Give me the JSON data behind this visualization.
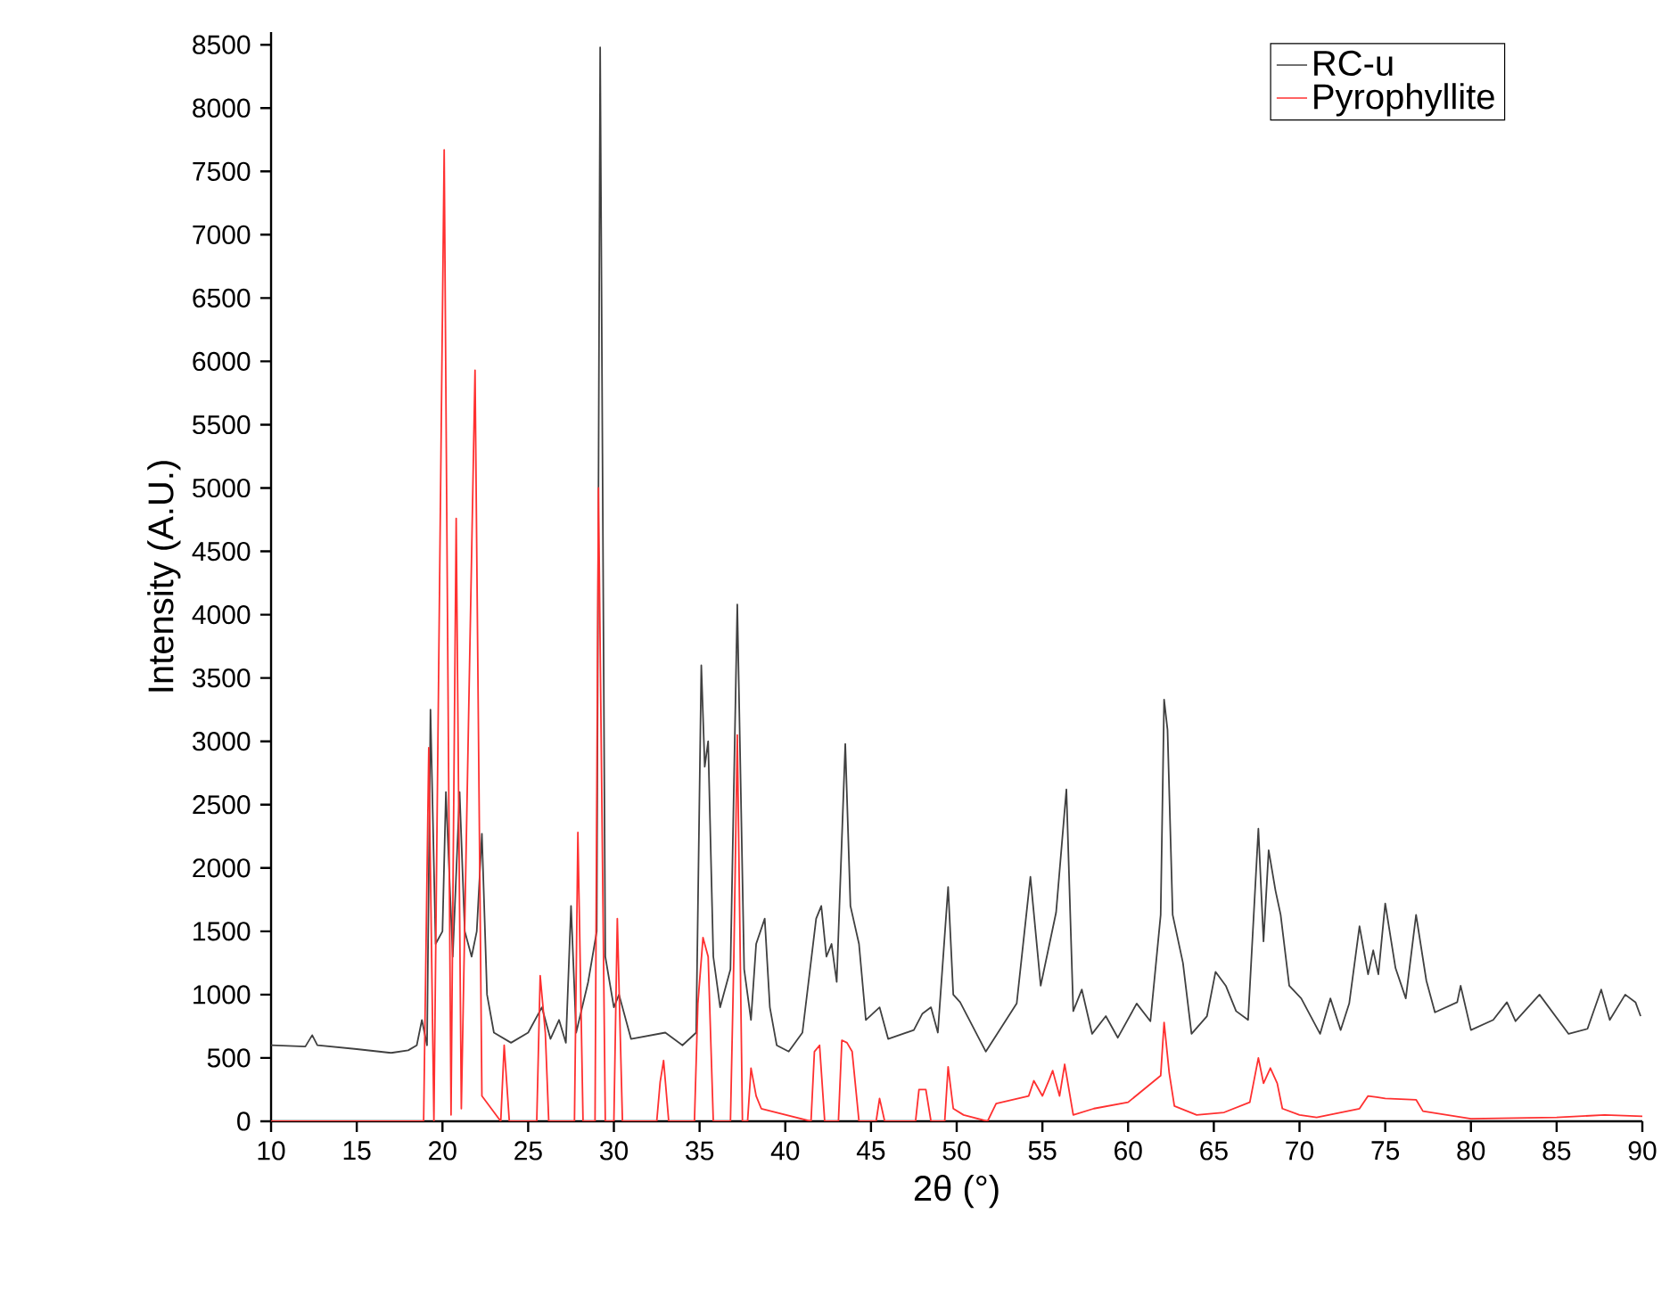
{
  "chart_data": {
    "type": "line",
    "xlabel": "2θ (°)",
    "ylabel": "Intensity (A.U.)",
    "xlim": [
      10,
      90
    ],
    "ylim": [
      0,
      8600
    ],
    "xticks": [
      10,
      15,
      20,
      25,
      30,
      35,
      40,
      45,
      50,
      55,
      60,
      65,
      70,
      75,
      80,
      85,
      90
    ],
    "yticks": [
      0,
      500,
      1000,
      1500,
      2000,
      2500,
      3000,
      3500,
      4000,
      4500,
      5000,
      5500,
      6000,
      6500,
      7000,
      7500,
      8000,
      8500
    ],
    "grid": false,
    "legend": "top right",
    "marker": "none",
    "line_style": "solid",
    "series": [
      {
        "name": "RC-u",
        "color": "#404040",
        "x": [
          10,
          12,
          12.4,
          12.7,
          15,
          17,
          18,
          18.5,
          18.8,
          19.1,
          19.3,
          19.6,
          20.0,
          20.2,
          20.6,
          21.0,
          21.3,
          21.7,
          22.0,
          22.3,
          22.6,
          23,
          24,
          25,
          25.8,
          26.3,
          26.8,
          27.2,
          27.5,
          27.8,
          28.5,
          29.0,
          29.2,
          29.5,
          30,
          30.3,
          31,
          33,
          34,
          34.8,
          35.1,
          35.3,
          35.5,
          35.8,
          36.2,
          36.8,
          37.2,
          37.6,
          38,
          38.3,
          38.8,
          39.1,
          39.5,
          40.2,
          41,
          41.8,
          42.1,
          42.4,
          42.7,
          43.0,
          43.5,
          43.8,
          44.3,
          44.7,
          45.5,
          46,
          47.5,
          48,
          48.5,
          48.9,
          49.5,
          49.8,
          50.2,
          51.7,
          53.5,
          54.3,
          54.9,
          55.8,
          56.4,
          56.8,
          57.3,
          57.9,
          58.7,
          59.4,
          60.5,
          61.3,
          61.9,
          62.1,
          62.3,
          62.6,
          63.2,
          63.7,
          64.6,
          65.1,
          65.7,
          66.3,
          67.0,
          67.6,
          67.9,
          68.2,
          68.6,
          68.9,
          69.4,
          70.1,
          71.2,
          71.8,
          72.4,
          72.9,
          73.5,
          74.0,
          74.3,
          74.6,
          75.0,
          75.6,
          76.2,
          76.8,
          77.4,
          77.9,
          79.2,
          79.4,
          80.0,
          81.3,
          82.1,
          82.6,
          84.0,
          85.7,
          86.8,
          87.6,
          88.1,
          89.0,
          89.6,
          89.9
        ],
        "values": [
          600,
          590,
          680,
          600,
          570,
          540,
          560,
          600,
          800,
          600,
          3250,
          1400,
          1500,
          2600,
          1300,
          2600,
          1500,
          1300,
          1500,
          2270,
          1000,
          700,
          620,
          700,
          900,
          650,
          800,
          620,
          1700,
          700,
          1100,
          1500,
          8480,
          1300,
          900,
          1000,
          650,
          700,
          600,
          700,
          3600,
          2800,
          3000,
          1300,
          900,
          1200,
          4080,
          1200,
          800,
          1400,
          1600,
          900,
          600,
          550,
          700,
          1600,
          1700,
          1300,
          1400,
          1100,
          2980,
          1700,
          1400,
          800,
          900,
          650,
          720,
          850,
          900,
          700,
          1850,
          1000,
          940,
          550,
          930,
          1930,
          1070,
          1650,
          2620,
          870,
          1040,
          690,
          830,
          660,
          930,
          790,
          1630,
          3330,
          3090,
          1630,
          1250,
          690,
          830,
          1180,
          1070,
          870,
          800,
          2310,
          1420,
          2140,
          1820,
          1630,
          1070,
          970,
          690,
          970,
          720,
          930,
          1540,
          1160,
          1350,
          1160,
          1720,
          1210,
          970,
          1630,
          1110,
          860,
          940,
          1070,
          720,
          800,
          940,
          790,
          1000,
          690,
          730,
          1040,
          800,
          1000,
          940,
          830
        ]
      },
      {
        "name": "Pyrophyllite",
        "color": "#ff3030",
        "x": [
          10,
          18.9,
          19.2,
          19.5,
          20.1,
          20.5,
          20.8,
          21.1,
          21.9,
          22.3,
          23.4,
          23.6,
          23.9,
          25.5,
          25.7,
          26.0,
          26.2,
          27.7,
          27.9,
          28.2,
          28.9,
          29.1,
          29.5,
          30.0,
          30.2,
          30.5,
          32.5,
          32.7,
          32.9,
          33.2,
          34.7,
          34.9,
          35.2,
          35.5,
          35.8,
          36.8,
          37.0,
          37.2,
          37.5,
          37.8,
          38.0,
          38.3,
          38.6,
          41.5,
          41.7,
          42.0,
          42.3,
          43.1,
          43.3,
          43.6,
          43.9,
          44.3,
          45.3,
          45.5,
          45.8,
          47.6,
          47.8,
          48.2,
          48.5,
          49.3,
          49.5,
          49.8,
          50.4,
          51.8,
          52.3,
          54.2,
          54.5,
          55.0,
          55.4,
          55.6,
          56.0,
          56.3,
          56.8,
          58.0,
          60.0,
          61.9,
          62.1,
          62.4,
          62.7,
          64,
          65.6,
          67.1,
          67.6,
          67.9,
          68.3,
          68.7,
          69.0,
          70,
          71,
          73.5,
          74.0,
          74.5,
          75.0,
          76.8,
          77.2,
          80,
          85,
          87.8,
          90
        ],
        "values": [
          0,
          0,
          2950,
          0,
          7670,
          50,
          4760,
          100,
          5930,
          200,
          0,
          600,
          0,
          0,
          1150,
          700,
          0,
          0,
          2280,
          0,
          0,
          5000,
          0,
          0,
          1600,
          0,
          0,
          310,
          480,
          0,
          0,
          930,
          1450,
          1300,
          0,
          0,
          1300,
          3050,
          0,
          0,
          420,
          200,
          100,
          0,
          550,
          600,
          0,
          0,
          640,
          620,
          550,
          0,
          0,
          180,
          0,
          0,
          250,
          250,
          0,
          0,
          430,
          100,
          50,
          0,
          140,
          200,
          320,
          200,
          330,
          400,
          200,
          450,
          50,
          100,
          150,
          360,
          780,
          380,
          120,
          50,
          70,
          150,
          500,
          300,
          420,
          300,
          100,
          50,
          30,
          100,
          200,
          190,
          180,
          170,
          80,
          20,
          30,
          50,
          40
        ]
      }
    ]
  }
}
